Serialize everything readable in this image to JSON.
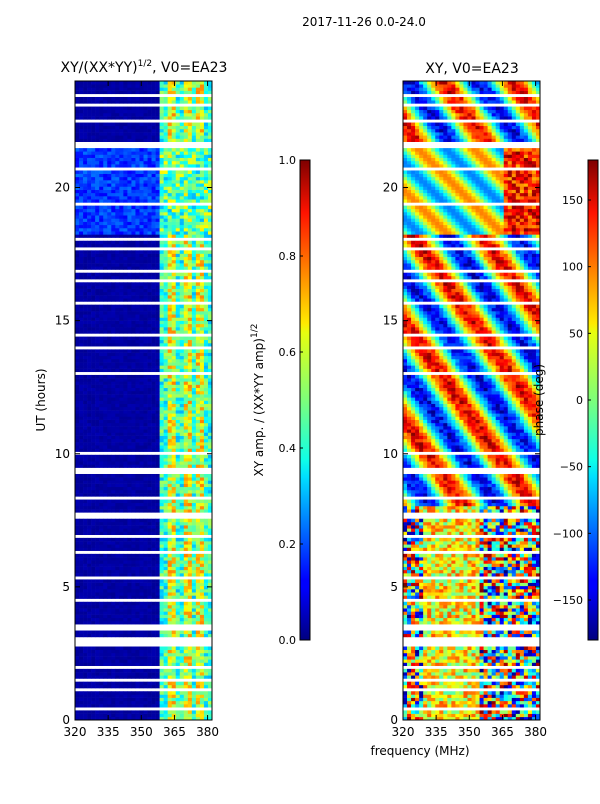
{
  "figure": {
    "suptitle": "2017-11-26 0.0-24.0",
    "shared_xlabel": "frequency (MHz)"
  },
  "chart_data": [
    {
      "type": "heatmap",
      "title_main": "XY/(XX*YY)",
      "title_exp": "1/2",
      "title_tail": ", V0=EA23",
      "xlabel": "",
      "ylabel": "UT (hours)",
      "x_ticks": [
        320,
        335,
        350,
        365,
        380
      ],
      "y_ticks": [
        0,
        5,
        10,
        15,
        20
      ],
      "xlim": [
        320,
        382
      ],
      "ylim": [
        0,
        24
      ],
      "colorbar": {
        "label_main": "XY amp. / (XX*YY amp)",
        "label_exp": "1/2",
        "ticks": [
          "0.0",
          "0.2",
          "0.4",
          "0.6",
          "0.8",
          "1.0"
        ],
        "range": [
          0,
          1
        ]
      }
    },
    {
      "type": "heatmap",
      "title_main": "XY, V0=EA23",
      "xlabel": "frequency (MHz)",
      "ylabel": "",
      "x_ticks": [
        320,
        335,
        350,
        365,
        380
      ],
      "y_ticks": [
        0,
        5,
        10,
        15,
        20
      ],
      "xlim": [
        320,
        382
      ],
      "ylim": [
        0,
        24
      ],
      "colorbar": {
        "label_main": "phase (deg)",
        "ticks": [
          "150",
          "100",
          "50",
          "0",
          "−50",
          "−100",
          "−150"
        ],
        "tick_values": [
          150,
          100,
          50,
          0,
          -50,
          -100,
          -150
        ],
        "range": [
          -180,
          180
        ]
      }
    }
  ],
  "colors": {
    "jet_low": "#000080",
    "jet_mid": "#80ff80",
    "jet_high": "#800000"
  }
}
